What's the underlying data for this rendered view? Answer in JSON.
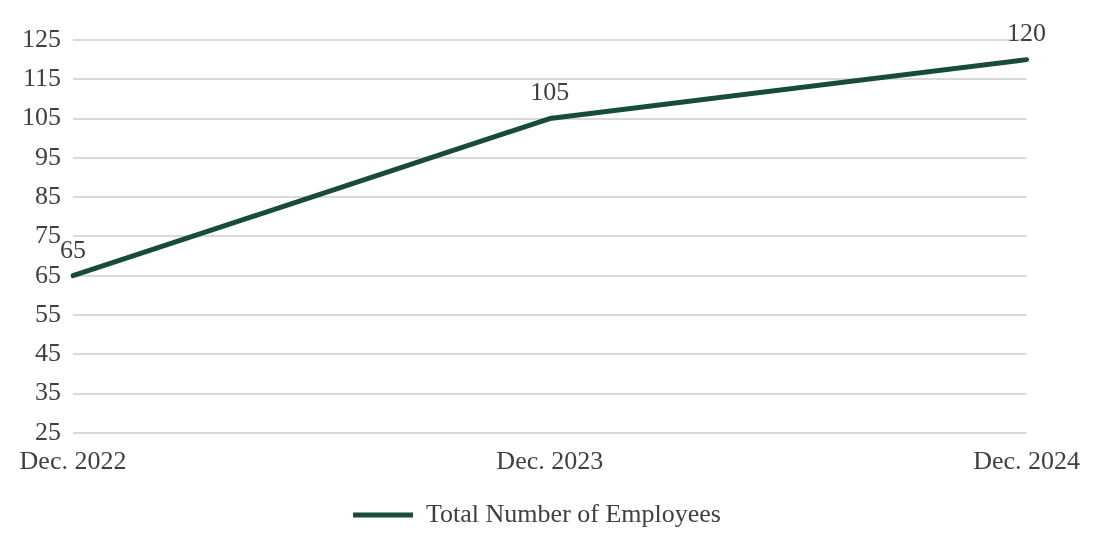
{
  "chart_data": {
    "type": "line",
    "categories": [
      "Dec. 2022",
      "Dec. 2023",
      "Dec. 2024"
    ],
    "series": [
      {
        "name": "Total Number of Employees",
        "color": "#174c38",
        "values": [
          65,
          105,
          120
        ]
      }
    ],
    "ylim": [
      25,
      125
    ],
    "yticks": [
      25,
      35,
      45,
      55,
      65,
      75,
      85,
      95,
      105,
      115,
      125
    ],
    "grid": "y",
    "legend": "bottom",
    "data_labels": true,
    "marker": "none",
    "line_style": "solid"
  }
}
